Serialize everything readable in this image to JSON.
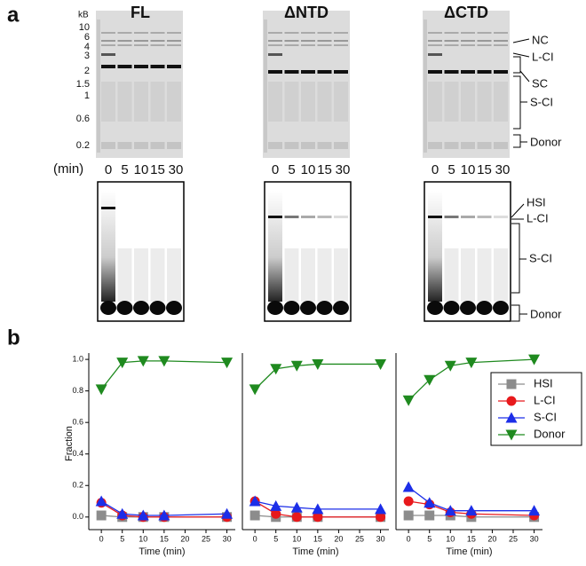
{
  "panel_a": {
    "label": "a",
    "unit": "kB",
    "ladder": [
      "10",
      "6",
      "4",
      "3",
      "2",
      "1.5",
      "1",
      "0.6",
      "0.2"
    ],
    "titles": [
      "FL",
      "ΔNTD",
      "ΔCTD"
    ],
    "top_labels": [
      "NC",
      "L-CI",
      "SC",
      "S-CI",
      "Donor"
    ],
    "time_label": "(min)",
    "times": [
      "0",
      "5",
      "10",
      "15",
      "30"
    ],
    "bottom_labels": [
      "HSI",
      "L-CI",
      "S-CI",
      "Donor"
    ]
  },
  "panel_b": {
    "label": "b",
    "y_label": "Fraction"
  },
  "chart_data": [
    {
      "type": "line",
      "x_label": "Time (min)",
      "xlim": [
        -3,
        32
      ],
      "ylim": [
        -0.08,
        1.04
      ],
      "xticks": [
        0,
        5,
        10,
        15,
        20,
        25,
        30
      ],
      "yticks": [
        {
          "value": 0,
          "label": "0.0"
        },
        {
          "value": 0.2,
          "label": "0.2"
        },
        {
          "value": 0.4,
          "label": "0.4"
        },
        {
          "value": 0.6,
          "label": "0.6"
        },
        {
          "value": 0.8,
          "label": "0.8"
        },
        {
          "value": 1,
          "label": "1.0"
        }
      ],
      "x": [
        0,
        5,
        10,
        15,
        30
      ],
      "series": [
        {
          "color": "#8c8c8c",
          "marker": "square",
          "values": [
            0.01,
            0.0,
            0.0,
            0.0,
            0.0
          ]
        },
        {
          "color": "#e8191c",
          "marker": "circle",
          "values": [
            0.09,
            0.01,
            0.0,
            0.0,
            0.0
          ]
        },
        {
          "color": "#1c2ee8",
          "marker": "triangle-up",
          "values": [
            0.1,
            0.02,
            0.01,
            0.01,
            0.02
          ]
        },
        {
          "color": "#1f8a1f",
          "marker": "triangle-down",
          "values": [
            0.81,
            0.98,
            0.99,
            0.99,
            0.98
          ]
        }
      ]
    },
    {
      "type": "line",
      "x_label": "Time (min)",
      "xlim": [
        -3,
        32
      ],
      "ylim": [
        -0.08,
        1.04
      ],
      "xticks": [
        0,
        5,
        10,
        15,
        20,
        25,
        30
      ],
      "x": [
        0,
        5,
        10,
        15,
        30
      ],
      "series": [
        {
          "color": "#8c8c8c",
          "marker": "square",
          "values": [
            0.01,
            0.0,
            0.0,
            0.0,
            0.0
          ]
        },
        {
          "color": "#e8191c",
          "marker": "circle",
          "values": [
            0.1,
            0.02,
            0.0,
            0.0,
            0.0
          ]
        },
        {
          "color": "#1c2ee8",
          "marker": "triangle-up",
          "values": [
            0.1,
            0.07,
            0.06,
            0.05,
            0.05
          ]
        },
        {
          "color": "#1f8a1f",
          "marker": "triangle-down",
          "values": [
            0.81,
            0.94,
            0.96,
            0.97,
            0.97
          ]
        }
      ]
    },
    {
      "type": "line",
      "x_label": "Time (min)",
      "xlim": [
        -3,
        32
      ],
      "ylim": [
        -0.08,
        1.04
      ],
      "xticks": [
        0,
        5,
        10,
        15,
        20,
        25,
        30
      ],
      "x": [
        0,
        5,
        10,
        15,
        30
      ],
      "legend": "upper right",
      "series": [
        {
          "name": "HSI",
          "color": "#8c8c8c",
          "marker": "square",
          "values": [
            0.01,
            0.01,
            0.01,
            0.0,
            0.0
          ]
        },
        {
          "name": "L-CI",
          "color": "#e8191c",
          "marker": "circle",
          "values": [
            0.1,
            0.08,
            0.03,
            0.02,
            0.01
          ]
        },
        {
          "name": "S-CI",
          "color": "#1c2ee8",
          "marker": "triangle-up",
          "values": [
            0.19,
            0.09,
            0.04,
            0.04,
            0.04
          ]
        },
        {
          "name": "Donor",
          "color": "#1f8a1f",
          "marker": "triangle-down",
          "values": [
            0.74,
            0.87,
            0.96,
            0.98,
            1.0
          ]
        }
      ]
    }
  ]
}
